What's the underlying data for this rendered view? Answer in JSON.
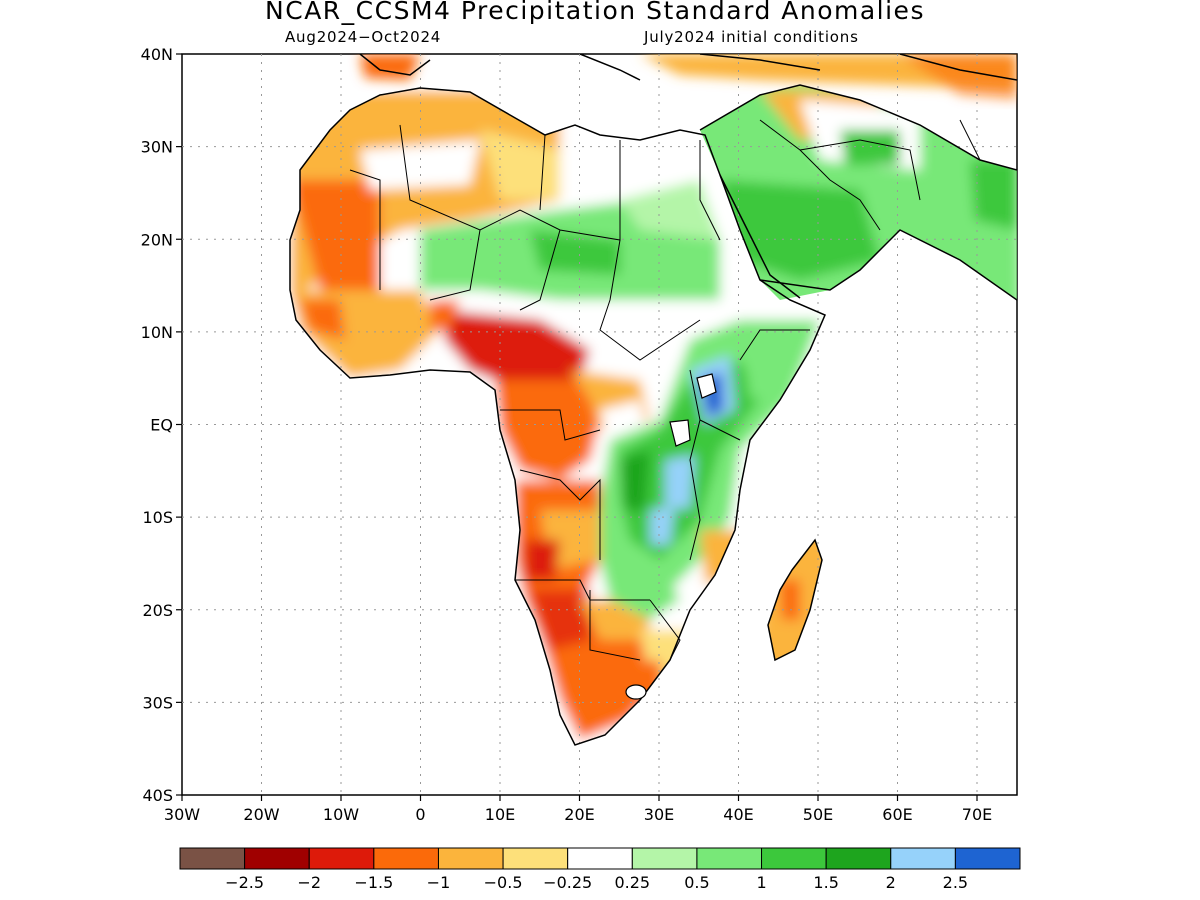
{
  "title": "NCAR_CCSM4 Precipitation Standard Anomalies",
  "subtitle_left": "Aug2024−Oct2024",
  "subtitle_right": "July2024 initial conditions",
  "lat_ticks": [
    "40N",
    "30N",
    "20N",
    "10N",
    "EQ",
    "10S",
    "20S",
    "30S",
    "40S"
  ],
  "lon_ticks": [
    "30W",
    "20W",
    "10W",
    "0",
    "10E",
    "20E",
    "30E",
    "40E",
    "50E",
    "60E",
    "70E"
  ],
  "colorbar": {
    "colors": [
      "#7a5245",
      "#a00000",
      "#dd1a0a",
      "#fb6a0a",
      "#fbb43c",
      "#fde07a",
      "#ffffff",
      "#b4f5a8",
      "#78e878",
      "#3cc83c",
      "#1ea51e",
      "#96d2fa",
      "#1e64d2"
    ],
    "labels": [
      "−2.5",
      "−2",
      "−1.5",
      "−1",
      "−0.5",
      "−0.25",
      "0.25",
      "0.5",
      "1",
      "1.5",
      "2",
      "2.5"
    ]
  },
  "map_regions": [
    {
      "name": "north-africa-dry",
      "color": "#fbb43c"
    },
    {
      "name": "sahel-wet",
      "color": "#78e878"
    },
    {
      "name": "gulf-of-guinea-dry",
      "color": "#dd1a0a"
    },
    {
      "name": "congo-dry",
      "color": "#fb6a0a"
    },
    {
      "name": "east-africa-wet",
      "color": "#3cc83c"
    },
    {
      "name": "lake-victoria-very-wet",
      "color": "#1e64d2"
    },
    {
      "name": "southwest-africa-dry",
      "color": "#fb6a0a"
    },
    {
      "name": "madagascar-dry",
      "color": "#fbb43c"
    },
    {
      "name": "arabia-wet",
      "color": "#3cc83c"
    }
  ]
}
